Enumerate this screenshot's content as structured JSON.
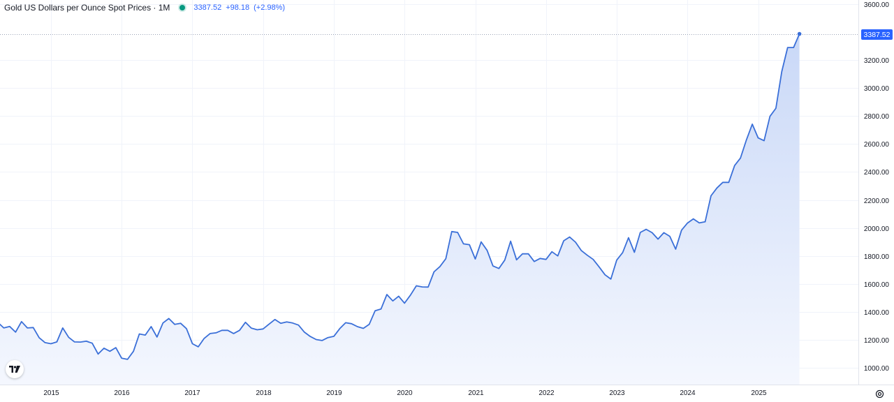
{
  "legend": {
    "title": "Gold US Dollars per Ounce Spot Prices · 1M",
    "last": "3387.52",
    "change": "+98.18",
    "change_pct": "(+2.98%)"
  },
  "colors": {
    "line": "#3a6fd8",
    "fill_top": "#c9d8f7",
    "fill_bottom": "#f4f7fe",
    "badge": "#2962ff",
    "grid": "#f0f3fa",
    "status_dot": "#089981"
  },
  "icons": {
    "logo": "tradingview-logo-icon",
    "settings": "gear-icon"
  },
  "chart_data": {
    "type": "area",
    "title": "Gold US Dollars per Ounce Spot Prices",
    "interval": "1M",
    "last_value_label": "3387.52",
    "xlabel": "",
    "ylabel": "",
    "x_start": "2014-04",
    "x_step": "1 month",
    "ylim": [
      880,
      3630
    ],
    "xlim": [
      "2014-04",
      "2026-06"
    ],
    "y_ticks": [
      "1000.00",
      "1200.00",
      "1400.00",
      "1600.00",
      "1800.00",
      "2000.00",
      "2200.00",
      "2400.00",
      "2600.00",
      "2800.00",
      "3000.00",
      "3200.00",
      "3600.00"
    ],
    "x_ticks": [
      "2015",
      "2016",
      "2017",
      "2018",
      "2019",
      "2020",
      "2021",
      "2022",
      "2023",
      "2024",
      "2025"
    ],
    "grid": true,
    "legend": "top-left",
    "values": [
      1324,
      1285,
      1295,
      1255,
      1330,
      1285,
      1288,
      1215,
      1180,
      1172,
      1185,
      1285,
      1218,
      1185,
      1184,
      1190,
      1176,
      1098,
      1140,
      1118,
      1144,
      1068,
      1060,
      1118,
      1242,
      1234,
      1294,
      1220,
      1320,
      1352,
      1310,
      1318,
      1280,
      1172,
      1150,
      1210,
      1245,
      1250,
      1268,
      1268,
      1245,
      1268,
      1325,
      1284,
      1272,
      1278,
      1312,
      1345,
      1318,
      1328,
      1320,
      1305,
      1255,
      1224,
      1202,
      1195,
      1216,
      1225,
      1280,
      1322,
      1315,
      1294,
      1282,
      1310,
      1408,
      1420,
      1524,
      1478,
      1512,
      1462,
      1520,
      1586,
      1578,
      1577,
      1686,
      1724,
      1780,
      1974,
      1968,
      1886,
      1880,
      1778,
      1900,
      1840,
      1728,
      1710,
      1770,
      1905,
      1772,
      1815,
      1815,
      1760,
      1782,
      1775,
      1830,
      1800,
      1908,
      1935,
      1898,
      1838,
      1805,
      1775,
      1722,
      1665,
      1634,
      1770,
      1824,
      1930,
      1826,
      1968,
      1990,
      1966,
      1920,
      1966,
      1940,
      1848,
      1984,
      2035,
      2065,
      2036,
      2044,
      2230,
      2286,
      2326,
      2326,
      2446,
      2500,
      2630,
      2742,
      2644,
      2624,
      2798,
      2856,
      3118,
      3290,
      3290,
      3387.52
    ]
  }
}
